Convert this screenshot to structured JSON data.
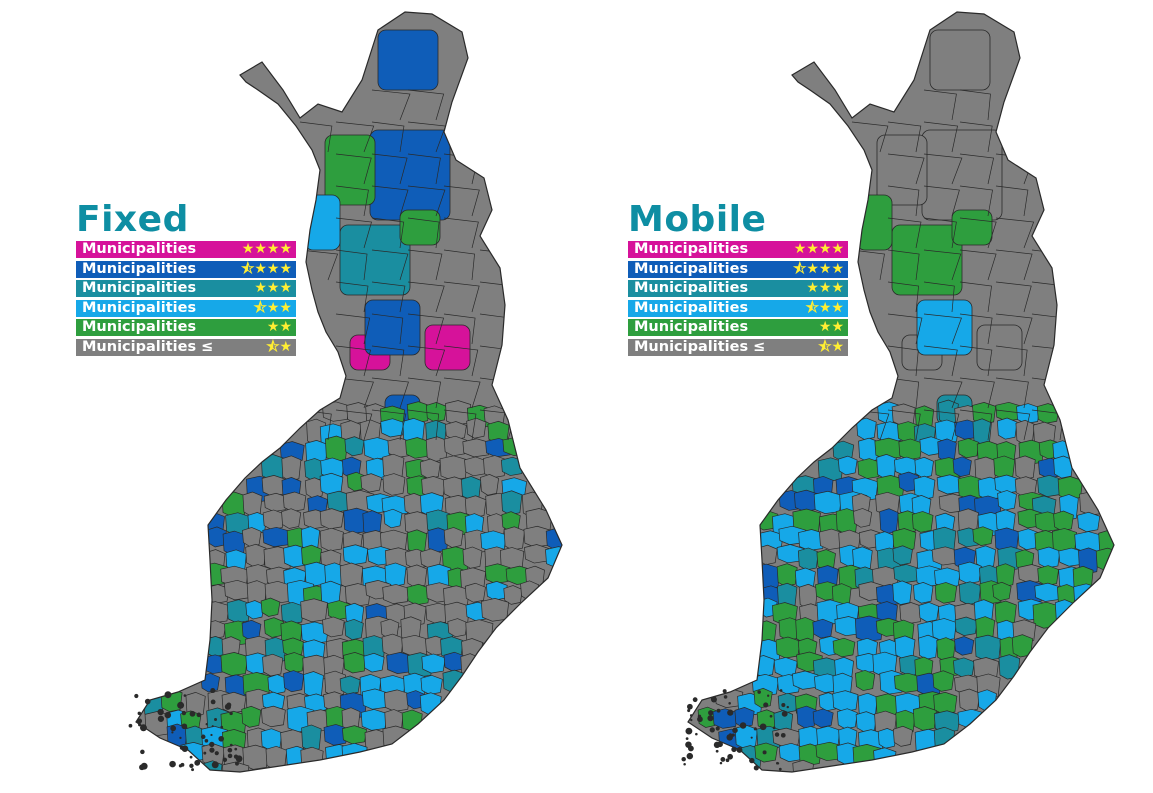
{
  "colors": {
    "stars4": "#d6129a",
    "stars3half": "#0f5db8",
    "stars3": "#1a8ea0",
    "stars2half": "#16a8e8",
    "stars2": "#2e9e3e",
    "lowest": "#7f7f7f",
    "title": "#0e8ea3",
    "border": "#2a2a2a",
    "star": "#ffee33"
  },
  "legend": [
    {
      "label": "Municipalities",
      "stars": "★★★★",
      "color_key": "stars4"
    },
    {
      "label": "Municipalities",
      "stars": "⯪★★★",
      "color_key": "stars3half"
    },
    {
      "label": "Municipalities",
      "stars": "★★★",
      "color_key": "stars3"
    },
    {
      "label": "Municipalities",
      "stars": "⯪★★",
      "color_key": "stars2half"
    },
    {
      "label": "Municipalities",
      "stars": "★★",
      "color_key": "stars2"
    },
    {
      "label": "Municipalities ≤",
      "stars": "⯪★",
      "color_key": "lowest"
    }
  ],
  "maps": [
    {
      "title": "Fixed",
      "palette": [
        "lowest",
        "lowest",
        "lowest",
        "stars2",
        "stars2half",
        "stars3half",
        "stars3",
        "lowest",
        "stars2",
        "stars2half"
      ],
      "north_regions": [
        "stars3half",
        "stars3half",
        "stars2",
        "stars3",
        "stars2half",
        "stars4",
        "stars3half",
        "stars2",
        "stars3half",
        "stars4"
      ]
    },
    {
      "title": "Mobile",
      "palette": [
        "stars2half",
        "stars2",
        "stars2half",
        "stars2",
        "stars3",
        "stars2half",
        "lowest",
        "stars2",
        "stars3half",
        "stars2half"
      ],
      "north_regions": [
        "lowest",
        "lowest",
        "lowest",
        "stars2",
        "stars2",
        "lowest",
        "stars2half",
        "stars2",
        "stars3",
        "lowest"
      ]
    }
  ]
}
